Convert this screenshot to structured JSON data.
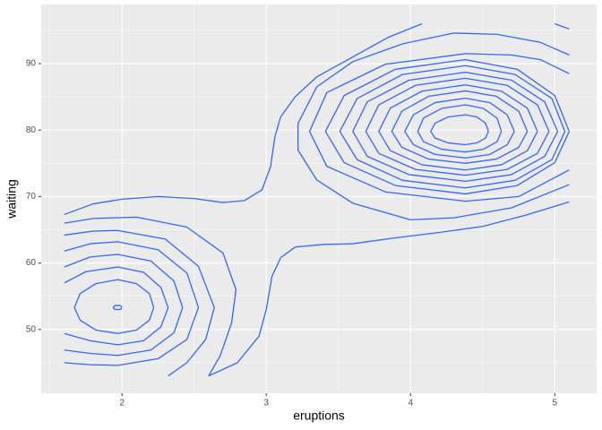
{
  "chart_data": {
    "type": "contour",
    "color": "#3366ff",
    "xlabel": "eruptions",
    "ylabel": "waiting",
    "xlim": [
      1.44,
      5.29
    ],
    "ylim": [
      40.4,
      98.9
    ],
    "xticks": [
      2,
      3,
      4,
      5
    ],
    "yticks": [
      50,
      60,
      70,
      80,
      90
    ],
    "grid": true,
    "minor_grid": true,
    "series": [
      {
        "x": [
          2.0,
          1.99,
          1.95,
          1.94,
          1.95,
          1.99,
          2.0
        ],
        "y": [
          53.3,
          53.6,
          53.6,
          53.3,
          53.0,
          53.0,
          53.3
        ]
      },
      {
        "x": [
          2.22,
          2.19,
          2.1,
          1.97,
          1.82,
          1.71,
          1.67,
          1.71,
          1.82,
          1.97,
          2.1,
          2.19,
          2.22
        ],
        "y": [
          53.3,
          55.4,
          56.9,
          57.5,
          56.9,
          55.4,
          53.3,
          51.4,
          49.9,
          49.4,
          49.9,
          51.4,
          53.3
        ]
      },
      {
        "x": [
          1.6,
          1.75,
          1.97,
          2.15,
          2.27,
          2.32,
          2.27,
          2.15,
          1.97,
          1.78,
          1.6
        ],
        "y": [
          57.0,
          58.7,
          59.4,
          58.6,
          56.3,
          53.3,
          50.4,
          48.3,
          47.7,
          48.3,
          49.4
        ]
      },
      {
        "x": [
          1.6,
          1.78,
          1.97,
          2.2,
          2.36,
          2.42,
          2.36,
          2.2,
          1.97,
          1.78,
          1.6
        ],
        "y": [
          59.4,
          60.9,
          61.3,
          60.3,
          57.3,
          53.3,
          49.5,
          46.9,
          46.1,
          46.4,
          46.9
        ]
      },
      {
        "x": [
          1.6,
          1.78,
          1.97,
          2.25,
          2.45,
          2.53,
          2.45,
          2.25,
          1.97,
          1.78,
          1.6
        ],
        "y": [
          61.8,
          62.9,
          63.2,
          62.0,
          58.5,
          53.3,
          48.5,
          45.6,
          44.6,
          44.7,
          45.0
        ]
      },
      {
        "x": [
          1.6,
          1.8,
          1.97,
          2.3,
          2.53,
          2.64,
          2.58,
          2.45,
          2.32
        ],
        "y": [
          64.2,
          64.8,
          64.9,
          63.6,
          59.5,
          53.3,
          48.5,
          45.0,
          43
        ]
      },
      {
        "x": [
          1.6,
          1.8,
          2.1,
          2.45,
          2.7,
          2.79,
          2.76,
          2.68,
          2.6
        ],
        "y": [
          66.0,
          66.7,
          66.9,
          65.4,
          61.5,
          56,
          51,
          46,
          43
        ]
      },
      {
        "x": [
          1.6,
          1.8,
          2.0,
          2.25,
          2.5,
          2.7,
          2.85,
          2.97,
          3.03,
          3.06,
          3.1,
          3.2,
          3.35,
          3.6,
          3.85,
          4.08
        ],
        "y": [
          67.3,
          68.9,
          69.6,
          70.0,
          69.7,
          69.1,
          69.4,
          71.0,
          74.5,
          79,
          82,
          85,
          88,
          91,
          94,
          96
        ]
      },
      {
        "x": [
          2.6,
          2.8,
          2.95,
          3.0,
          3.04,
          3.1,
          3.2,
          3.4,
          3.6,
          3.9,
          4.2,
          4.5,
          4.8,
          5.1
        ],
        "y": [
          43,
          45,
          49,
          53,
          58,
          60.8,
          62.4,
          62.8,
          62.9,
          63.8,
          64.6,
          65.5,
          67.2,
          69.2
        ]
      },
      {
        "x": [
          4.54,
          4.52,
          4.46,
          4.38,
          4.26,
          4.17,
          4.14,
          4.17,
          4.26,
          4.38,
          4.46,
          4.52,
          4.54
        ],
        "y": [
          79.8,
          81.05,
          81.97,
          82.3,
          81.97,
          81.05,
          79.8,
          78.8,
          78.07,
          77.8,
          78.07,
          78.8,
          79.8
        ]
      },
      {
        "x": [
          4.63,
          4.6,
          4.505,
          4.38,
          4.215,
          4.09,
          4.05,
          4.09,
          4.215,
          4.38,
          4.505,
          4.6,
          4.63
        ],
        "y": [
          79.8,
          81.8,
          83.26,
          83.8,
          83.26,
          81.8,
          79.8,
          78.25,
          77.12,
          76.7,
          77.12,
          78.25,
          79.8
        ]
      },
      {
        "x": [
          4.72,
          4.67,
          4.55,
          4.38,
          4.17,
          4.02,
          3.96,
          4.02,
          4.17,
          4.38,
          4.55,
          4.67,
          4.72
        ],
        "y": [
          79.8,
          82.3,
          84.13,
          84.8,
          84.13,
          82.3,
          79.8,
          77.8,
          76.34,
          75.8,
          76.34,
          77.8,
          79.8
        ]
      },
      {
        "x": [
          4.81,
          4.75,
          4.595,
          4.38,
          4.125,
          3.94,
          3.87,
          3.94,
          4.125,
          4.38,
          4.595,
          4.75,
          4.81
        ],
        "y": [
          79.8,
          82.85,
          85.08,
          85.9,
          85.08,
          82.85,
          79.8,
          77.4,
          75.64,
          75.0,
          75.64,
          77.4,
          79.8
        ]
      },
      {
        "x": [
          4.88,
          4.81,
          4.63,
          4.38,
          4.08,
          3.86,
          3.78,
          3.86,
          4.08,
          4.38,
          4.63,
          4.81,
          4.88
        ],
        "y": [
          79.8,
          83.3,
          85.86,
          86.8,
          85.86,
          83.3,
          79.8,
          76.9,
          74.78,
          74.0,
          74.78,
          76.9,
          79.8
        ]
      },
      {
        "x": [
          4.96,
          4.88,
          4.67,
          4.38,
          4.035,
          3.78,
          3.69,
          3.78,
          4.035,
          4.38,
          4.67,
          4.88,
          4.96
        ],
        "y": [
          79.8,
          83.8,
          86.73,
          87.8,
          86.73,
          83.8,
          79.8,
          76.5,
          74.08,
          73.2,
          74.08,
          76.5,
          79.8
        ]
      },
      {
        "x": [
          5.02,
          4.93,
          4.7,
          4.38,
          3.99,
          3.7,
          3.6,
          3.7,
          3.99,
          4.38,
          4.7,
          4.93,
          5.02
        ],
        "y": [
          79.8,
          84.25,
          87.51,
          88.7,
          87.51,
          84.25,
          79.8,
          76.05,
          73.3,
          72.3,
          73.3,
          76.05,
          79.8
        ]
      },
      {
        "x": [
          5.07,
          4.98,
          4.725,
          4.38,
          3.945,
          3.63,
          3.51,
          3.63,
          3.945,
          4.38,
          4.725,
          4.98,
          5.07
        ],
        "y": [
          79.8,
          84.75,
          88.37,
          89.7,
          88.37,
          84.75,
          79.8,
          75.55,
          72.44,
          71.3,
          72.44,
          75.55,
          79.8
        ]
      },
      {
        "x": [
          5.1,
          5.0,
          4.74,
          4.38,
          3.895,
          3.54,
          3.41,
          3.54,
          3.895,
          4.38,
          4.74,
          5.0,
          5.1
        ],
        "y": [
          79.8,
          85.2,
          89.15,
          90.6,
          89.15,
          85.2,
          79.8,
          75.1,
          71.66,
          70.4,
          71.66,
          75.1,
          79.8
        ]
      },
      {
        "x": [
          5.1,
          4.9,
          4.7,
          4.38,
          3.825,
          3.42,
          3.3,
          3.42,
          3.825,
          4.38,
          4.75,
          5.1
        ],
        "y": [
          88.5,
          90.6,
          91.3,
          91.5,
          89.9,
          85.65,
          79.8,
          74.55,
          70.7,
          69.3,
          70.0,
          74.0
        ]
      },
      {
        "x": [
          5.1,
          4.9,
          4.6,
          4.3,
          3.95,
          3.6,
          3.35,
          3.22,
          3.22,
          3.35,
          3.6,
          4.0,
          4.3,
          4.7,
          5.1
        ],
        "y": [
          91.3,
          93.2,
          94.4,
          94.6,
          93.0,
          90.3,
          86.5,
          81,
          77,
          72.5,
          69.0,
          66.5,
          66.8,
          68.3,
          71.8
        ]
      },
      {
        "x": [
          5.0,
          5.1
        ],
        "y": [
          96,
          95.2
        ]
      }
    ]
  }
}
